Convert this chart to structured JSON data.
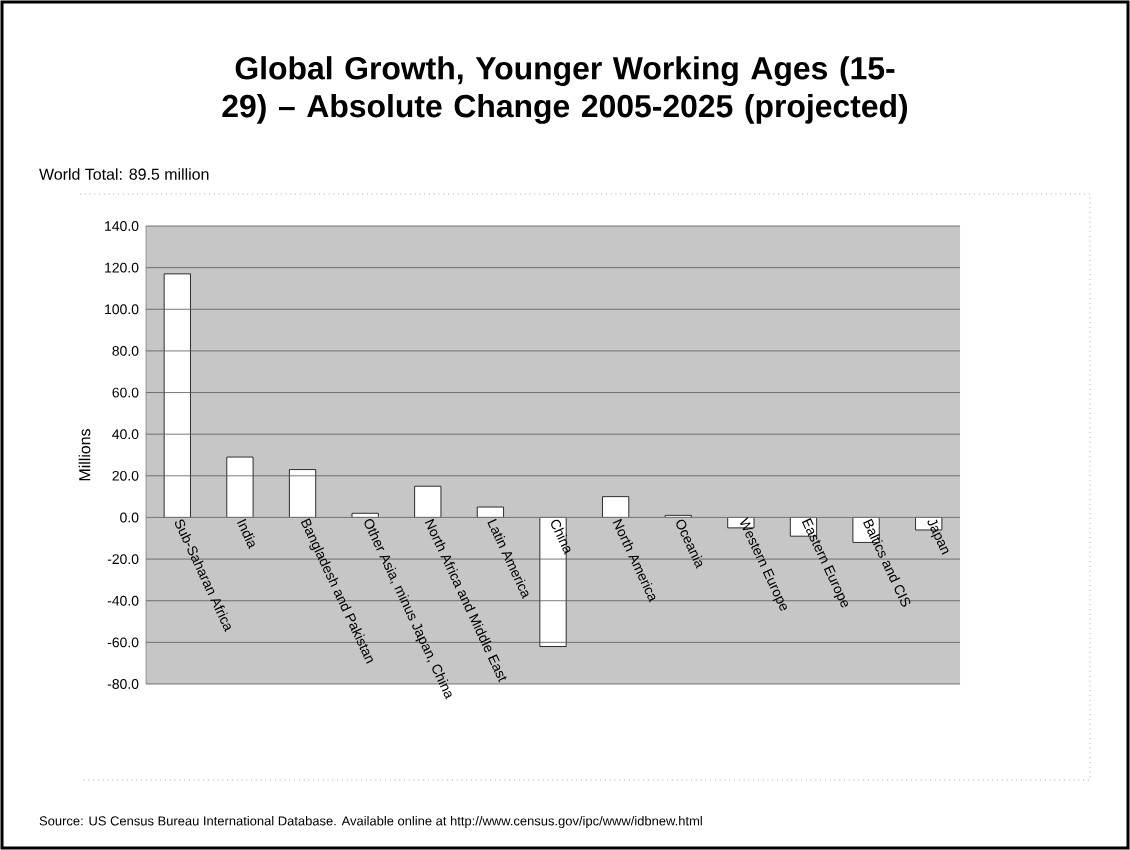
{
  "chart_data": {
    "type": "bar",
    "title": "Global Growth, Younger Working Ages (15-29) – Absolute Change 2005-2025 (projected)",
    "ylabel": "Millions",
    "annotations": [
      "World Total:  89.5 million",
      "Source:  US Census Bureau International Database.  Available online at http://www.census.gov/ipc/www/idbnew.html"
    ],
    "categories": [
      "Sub-Saharan Africa",
      "India",
      "Bangladesh and Pakistan",
      "Other Asia, minus Japan, China",
      "North Africa and Middle East",
      "Latin America",
      "China",
      "North America",
      "Oceania",
      "Western Europe",
      "Eastern Europe",
      "Baltics and CIS",
      "Japan"
    ],
    "values": [
      117,
      29,
      23,
      2,
      15,
      5,
      -62,
      10,
      1,
      -5,
      -9,
      -12,
      -6
    ],
    "color": "#ffffff",
    "ylim": [
      -80,
      140
    ],
    "yticks": [
      {
        "value": -80,
        "label": "-80.0"
      },
      {
        "value": -60,
        "label": "-60.0"
      },
      {
        "value": -40,
        "label": "-40.0"
      },
      {
        "value": -20,
        "label": "-20.0"
      },
      {
        "value": 0,
        "label": "0.0"
      },
      {
        "value": 20,
        "label": "20.0"
      },
      {
        "value": 40,
        "label": "40.0"
      },
      {
        "value": 60,
        "label": "60.0"
      },
      {
        "value": 80,
        "label": "80.0"
      },
      {
        "value": 100,
        "label": "100.0"
      },
      {
        "value": 120,
        "label": "120.0"
      },
      {
        "value": 140,
        "label": "140.0"
      }
    ],
    "grid": "y"
  }
}
